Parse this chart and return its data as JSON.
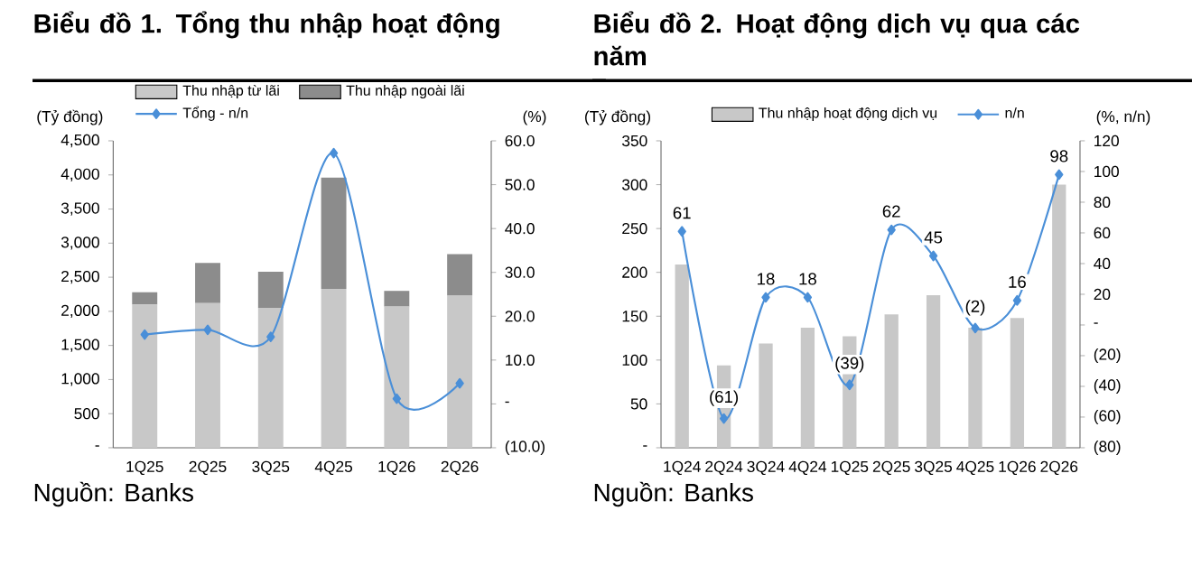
{
  "chart_data": [
    {
      "type": "bar",
      "title": "Biểu đồ 1. Tổng thu nhập hoạt động",
      "ylabel": "(Tỷ đồng)",
      "y2label": "(%)",
      "stacked": true,
      "categories": [
        "1Q25",
        "2Q25",
        "3Q25",
        "4Q25",
        "1Q26",
        "2Q26"
      ],
      "series": [
        {
          "name": "Thu nhập từ lãi",
          "color": "#c8c8c8",
          "values": [
            2100,
            2120,
            2050,
            2330,
            2070,
            2230
          ]
        },
        {
          "name": "Thu nhập ngoài lãi",
          "color": "#8c8c8c",
          "values": [
            180,
            590,
            530,
            1630,
            230,
            610
          ]
        },
        {
          "name": "Tổng - n/n",
          "type": "line",
          "axis": "y2",
          "color": "#4a8fd8",
          "values": [
            15.8,
            16.9,
            15.3,
            57.2,
            1.2,
            4.7
          ]
        }
      ],
      "ylim": [
        0,
        4500
      ],
      "yticks": [
        {
          "value": 0,
          "label": "-"
        },
        {
          "value": 500,
          "label": "500"
        },
        {
          "value": 1000,
          "label": "1,000"
        },
        {
          "value": 1500,
          "label": "1,500"
        },
        {
          "value": 2000,
          "label": "2,000"
        },
        {
          "value": 2500,
          "label": "2,500"
        },
        {
          "value": 3000,
          "label": "3,000"
        },
        {
          "value": 3500,
          "label": "3,500"
        },
        {
          "value": 4000,
          "label": "4,000"
        },
        {
          "value": 4500,
          "label": "4,500"
        }
      ],
      "y2lim": [
        -10,
        60
      ],
      "y2ticks": [
        {
          "value": -10,
          "label": "(10.0)"
        },
        {
          "value": 0,
          "label": "-"
        },
        {
          "value": 10,
          "label": "10.0"
        },
        {
          "value": 20,
          "label": "20.0"
        },
        {
          "value": 30,
          "label": "30.0"
        },
        {
          "value": 40,
          "label": "40.0"
        },
        {
          "value": 50,
          "label": "50.0"
        },
        {
          "value": 60,
          "label": "60.0"
        }
      ],
      "legend": "top",
      "marker": "diamond",
      "line_style": "solid",
      "annotations": [
        "Nguồn: Banks"
      ]
    },
    {
      "type": "bar",
      "title": "Biểu đồ 2. Hoạt động dịch vụ qua các năm",
      "ylabel": "(Tỷ đồng)",
      "y2label": "(%, n/n)",
      "categories": [
        "1Q24",
        "2Q24",
        "3Q24",
        "4Q24",
        "1Q25",
        "2Q25",
        "3Q25",
        "4Q25",
        "1Q26",
        "2Q26"
      ],
      "series": [
        {
          "name": "Thu nhập hoạt động dịch vụ",
          "color": "#c8c8c8",
          "values": [
            209,
            94,
            119,
            137,
            127,
            152,
            174,
            137,
            148,
            300
          ]
        },
        {
          "name": "n/n",
          "type": "line",
          "axis": "y2",
          "color": "#4a8fd8",
          "values": [
            61,
            -61,
            18,
            18,
            -39,
            62,
            45,
            -2,
            16,
            98
          ],
          "value_labels": [
            "61",
            "(61)",
            "18",
            "18",
            "(39)",
            "62",
            "45",
            "(2)",
            "16",
            "98"
          ]
        }
      ],
      "ylim": [
        0,
        350
      ],
      "yticks": [
        {
          "value": 0,
          "label": "-"
        },
        50,
        100,
        150,
        200,
        250,
        300,
        350
      ],
      "y2lim": [
        -80,
        120
      ],
      "y2ticks": [
        {
          "value": -80,
          "label": "(80)"
        },
        {
          "value": -60,
          "label": "(60)"
        },
        {
          "value": -40,
          "label": "(40)"
        },
        {
          "value": -20,
          "label": "(20)"
        },
        {
          "value": 0,
          "label": "-"
        },
        20,
        40,
        60,
        80,
        100,
        120
      ],
      "legend": "top",
      "marker": "diamond",
      "line_style": "solid",
      "annotations": [
        "Nguồn: Banks"
      ]
    }
  ]
}
